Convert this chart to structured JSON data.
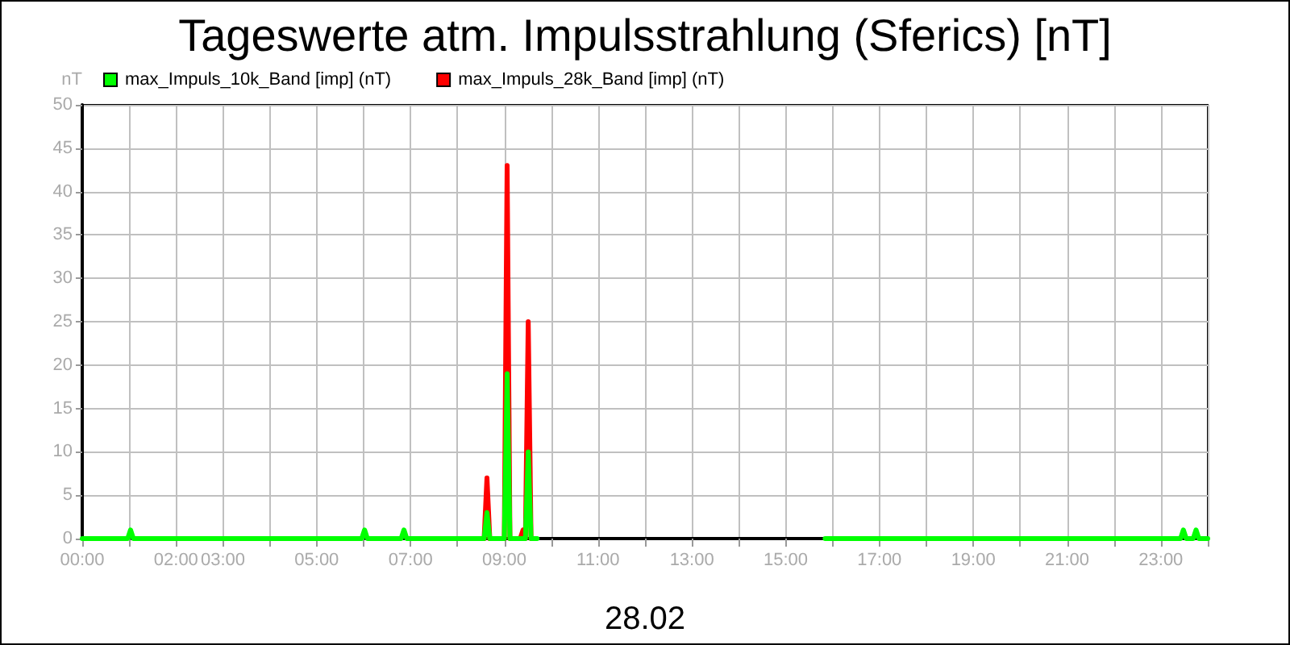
{
  "chart_data": {
    "type": "line",
    "title": "Tageswerte atm. Impulsstrahlung (Sferics) [nT]",
    "xlabel": "28.02",
    "ylabel": "nT",
    "xlim": [
      0,
      24
    ],
    "xticks": [
      {
        "value": 0,
        "label": "00:00"
      },
      {
        "value": 1,
        "label": null
      },
      {
        "value": 2,
        "label": "02:00"
      },
      {
        "value": 3,
        "label": "03:00"
      },
      {
        "value": 4,
        "label": null
      },
      {
        "value": 5,
        "label": "05:00"
      },
      {
        "value": 6,
        "label": null
      },
      {
        "value": 7,
        "label": "07:00"
      },
      {
        "value": 8,
        "label": null
      },
      {
        "value": 9,
        "label": "09:00"
      },
      {
        "value": 10,
        "label": null
      },
      {
        "value": 11,
        "label": "11:00"
      },
      {
        "value": 12,
        "label": null
      },
      {
        "value": 13,
        "label": "13:00"
      },
      {
        "value": 14,
        "label": null
      },
      {
        "value": 15,
        "label": "15:00"
      },
      {
        "value": 16,
        "label": null
      },
      {
        "value": 17,
        "label": "17:00"
      },
      {
        "value": 18,
        "label": null
      },
      {
        "value": 19,
        "label": "19:00"
      },
      {
        "value": 20,
        "label": null
      },
      {
        "value": 21,
        "label": "21:00"
      },
      {
        "value": 22,
        "label": null
      },
      {
        "value": 23,
        "label": "23:00"
      },
      {
        "value": 24,
        "label": null
      }
    ],
    "ylim": [
      0,
      50
    ],
    "yticks": [
      0,
      5,
      10,
      15,
      20,
      25,
      30,
      35,
      40,
      45,
      50
    ],
    "grid": true,
    "legend": "top left",
    "series": [
      {
        "name": "max_Impuls_10k_Band [imp] (nT)",
        "color": "#00ff00",
        "x": [
          0,
          0.97,
          1.03,
          1.09,
          5.96,
          6.02,
          6.08,
          6.8,
          6.86,
          6.92,
          8.57,
          8.63,
          8.69,
          9.0,
          9.06,
          9.12,
          9.45,
          9.51,
          9.57,
          9.7,
          12.0,
          15.84,
          23.42,
          23.48,
          23.54,
          23.69,
          23.75,
          23.81,
          24
        ],
        "values": [
          0,
          0,
          1,
          0,
          0,
          1,
          0,
          0,
          1,
          0,
          0,
          3,
          0,
          0,
          19,
          0,
          0,
          10,
          0,
          0,
          null,
          0,
          0,
          1,
          0,
          0,
          1,
          0,
          0
        ]
      },
      {
        "name": "max_Impuls_28k_Band [imp] (nT)",
        "color": "#ff0000",
        "x": [
          8.57,
          8.63,
          8.69,
          9.0,
          9.06,
          9.12,
          9.34,
          9.4,
          9.45,
          9.51,
          9.57
        ],
        "values": [
          0,
          7,
          0,
          0,
          43,
          0,
          0,
          1,
          0,
          25,
          0
        ]
      }
    ]
  }
}
